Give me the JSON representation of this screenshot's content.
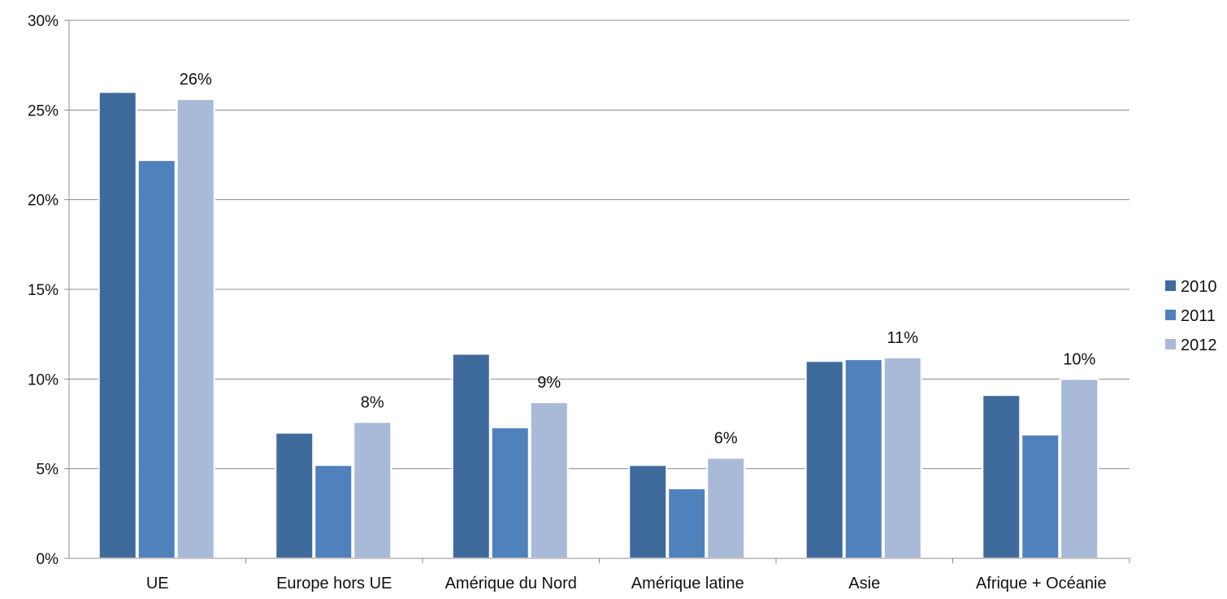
{
  "chart_data": {
    "type": "bar",
    "categories": [
      "UE",
      "Europe hors UE",
      "Amérique du Nord",
      "Amérique latine",
      "Asie",
      "Afrique + Océanie"
    ],
    "series": [
      {
        "name": "2010",
        "color": "#3F6A9C",
        "values": [
          26.0,
          7.0,
          11.4,
          5.2,
          11.0,
          9.1
        ]
      },
      {
        "name": "2011",
        "color": "#4F81BD",
        "values": [
          22.2,
          5.2,
          7.3,
          3.9,
          11.1,
          6.9
        ]
      },
      {
        "name": "2012",
        "color": "#A9B9D8",
        "values": [
          25.6,
          7.6,
          8.7,
          5.6,
          11.2,
          10.0
        ]
      }
    ],
    "data_labels": {
      "series": "2012",
      "texts": [
        "26%",
        "8%",
        "9%",
        "6%",
        "11%",
        "10%"
      ]
    },
    "ylim": [
      0,
      30
    ],
    "yticks": [
      0,
      5,
      10,
      15,
      20,
      25,
      30
    ],
    "ytick_labels": [
      "0%",
      "5%",
      "10%",
      "15%",
      "20%",
      "25%",
      "30%"
    ],
    "grid": true,
    "legend": "right",
    "title": "",
    "xlabel": "",
    "ylabel": ""
  }
}
